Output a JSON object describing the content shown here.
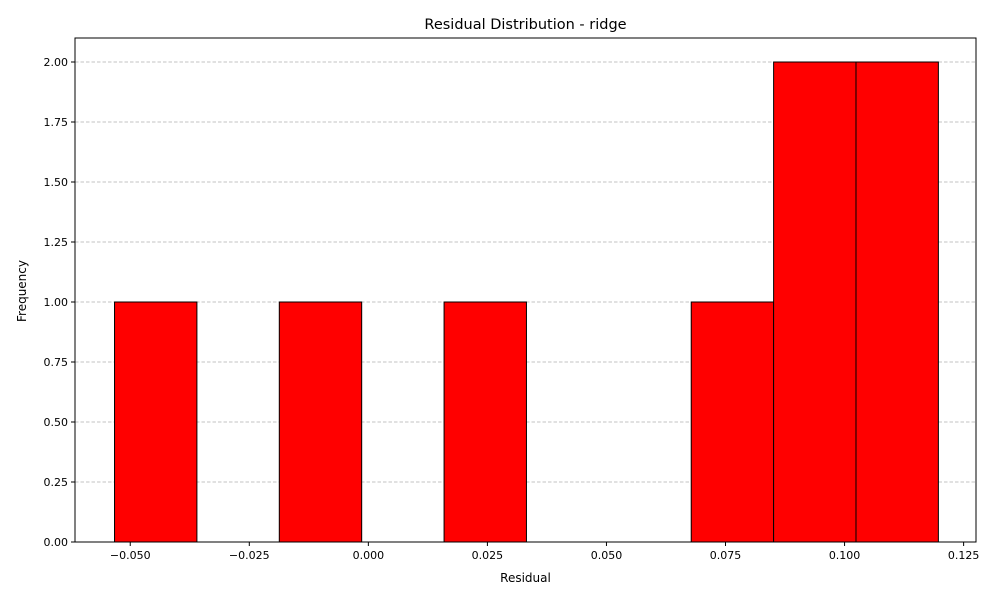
{
  "chart_data": {
    "type": "bar",
    "title": "Residual Distribution - ridge",
    "xlabel": "Residual",
    "ylabel": "Frequency",
    "xlim": [
      -0.0616,
      0.1276
    ],
    "ylim": [
      0,
      2.1
    ],
    "grid": "y-dashed",
    "bar_color": "#ff0000",
    "edge_color": "#000000",
    "grid_color": "#b0b0b0",
    "bins": [
      {
        "x0": -0.0533,
        "x1": -0.036,
        "count": 1
      },
      {
        "x0": -0.036,
        "x1": -0.0187,
        "count": 0
      },
      {
        "x0": -0.0187,
        "x1": -0.0014,
        "count": 1
      },
      {
        "x0": -0.0014,
        "x1": 0.0159,
        "count": 0
      },
      {
        "x0": 0.0159,
        "x1": 0.0332,
        "count": 1
      },
      {
        "x0": 0.0332,
        "x1": 0.0505,
        "count": 0
      },
      {
        "x0": 0.0505,
        "x1": 0.0678,
        "count": 0
      },
      {
        "x0": 0.0678,
        "x1": 0.0851,
        "count": 1
      },
      {
        "x0": 0.0851,
        "x1": 0.1024,
        "count": 2
      },
      {
        "x0": 0.1024,
        "x1": 0.1197,
        "count": 2
      }
    ],
    "xticks": [
      {
        "value": -0.05,
        "label": "−0.050"
      },
      {
        "value": -0.025,
        "label": "−0.025"
      },
      {
        "value": 0.0,
        "label": "0.000"
      },
      {
        "value": 0.025,
        "label": "0.025"
      },
      {
        "value": 0.05,
        "label": "0.050"
      },
      {
        "value": 0.075,
        "label": "0.075"
      },
      {
        "value": 0.1,
        "label": "0.100"
      },
      {
        "value": 0.125,
        "label": "0.125"
      }
    ],
    "yticks": [
      {
        "value": 0.0,
        "label": "0.00"
      },
      {
        "value": 0.25,
        "label": "0.25"
      },
      {
        "value": 0.5,
        "label": "0.50"
      },
      {
        "value": 0.75,
        "label": "0.75"
      },
      {
        "value": 1.0,
        "label": "1.00"
      },
      {
        "value": 1.25,
        "label": "1.25"
      },
      {
        "value": 1.5,
        "label": "1.50"
      },
      {
        "value": 1.75,
        "label": "1.75"
      },
      {
        "value": 2.0,
        "label": "2.00"
      }
    ]
  }
}
